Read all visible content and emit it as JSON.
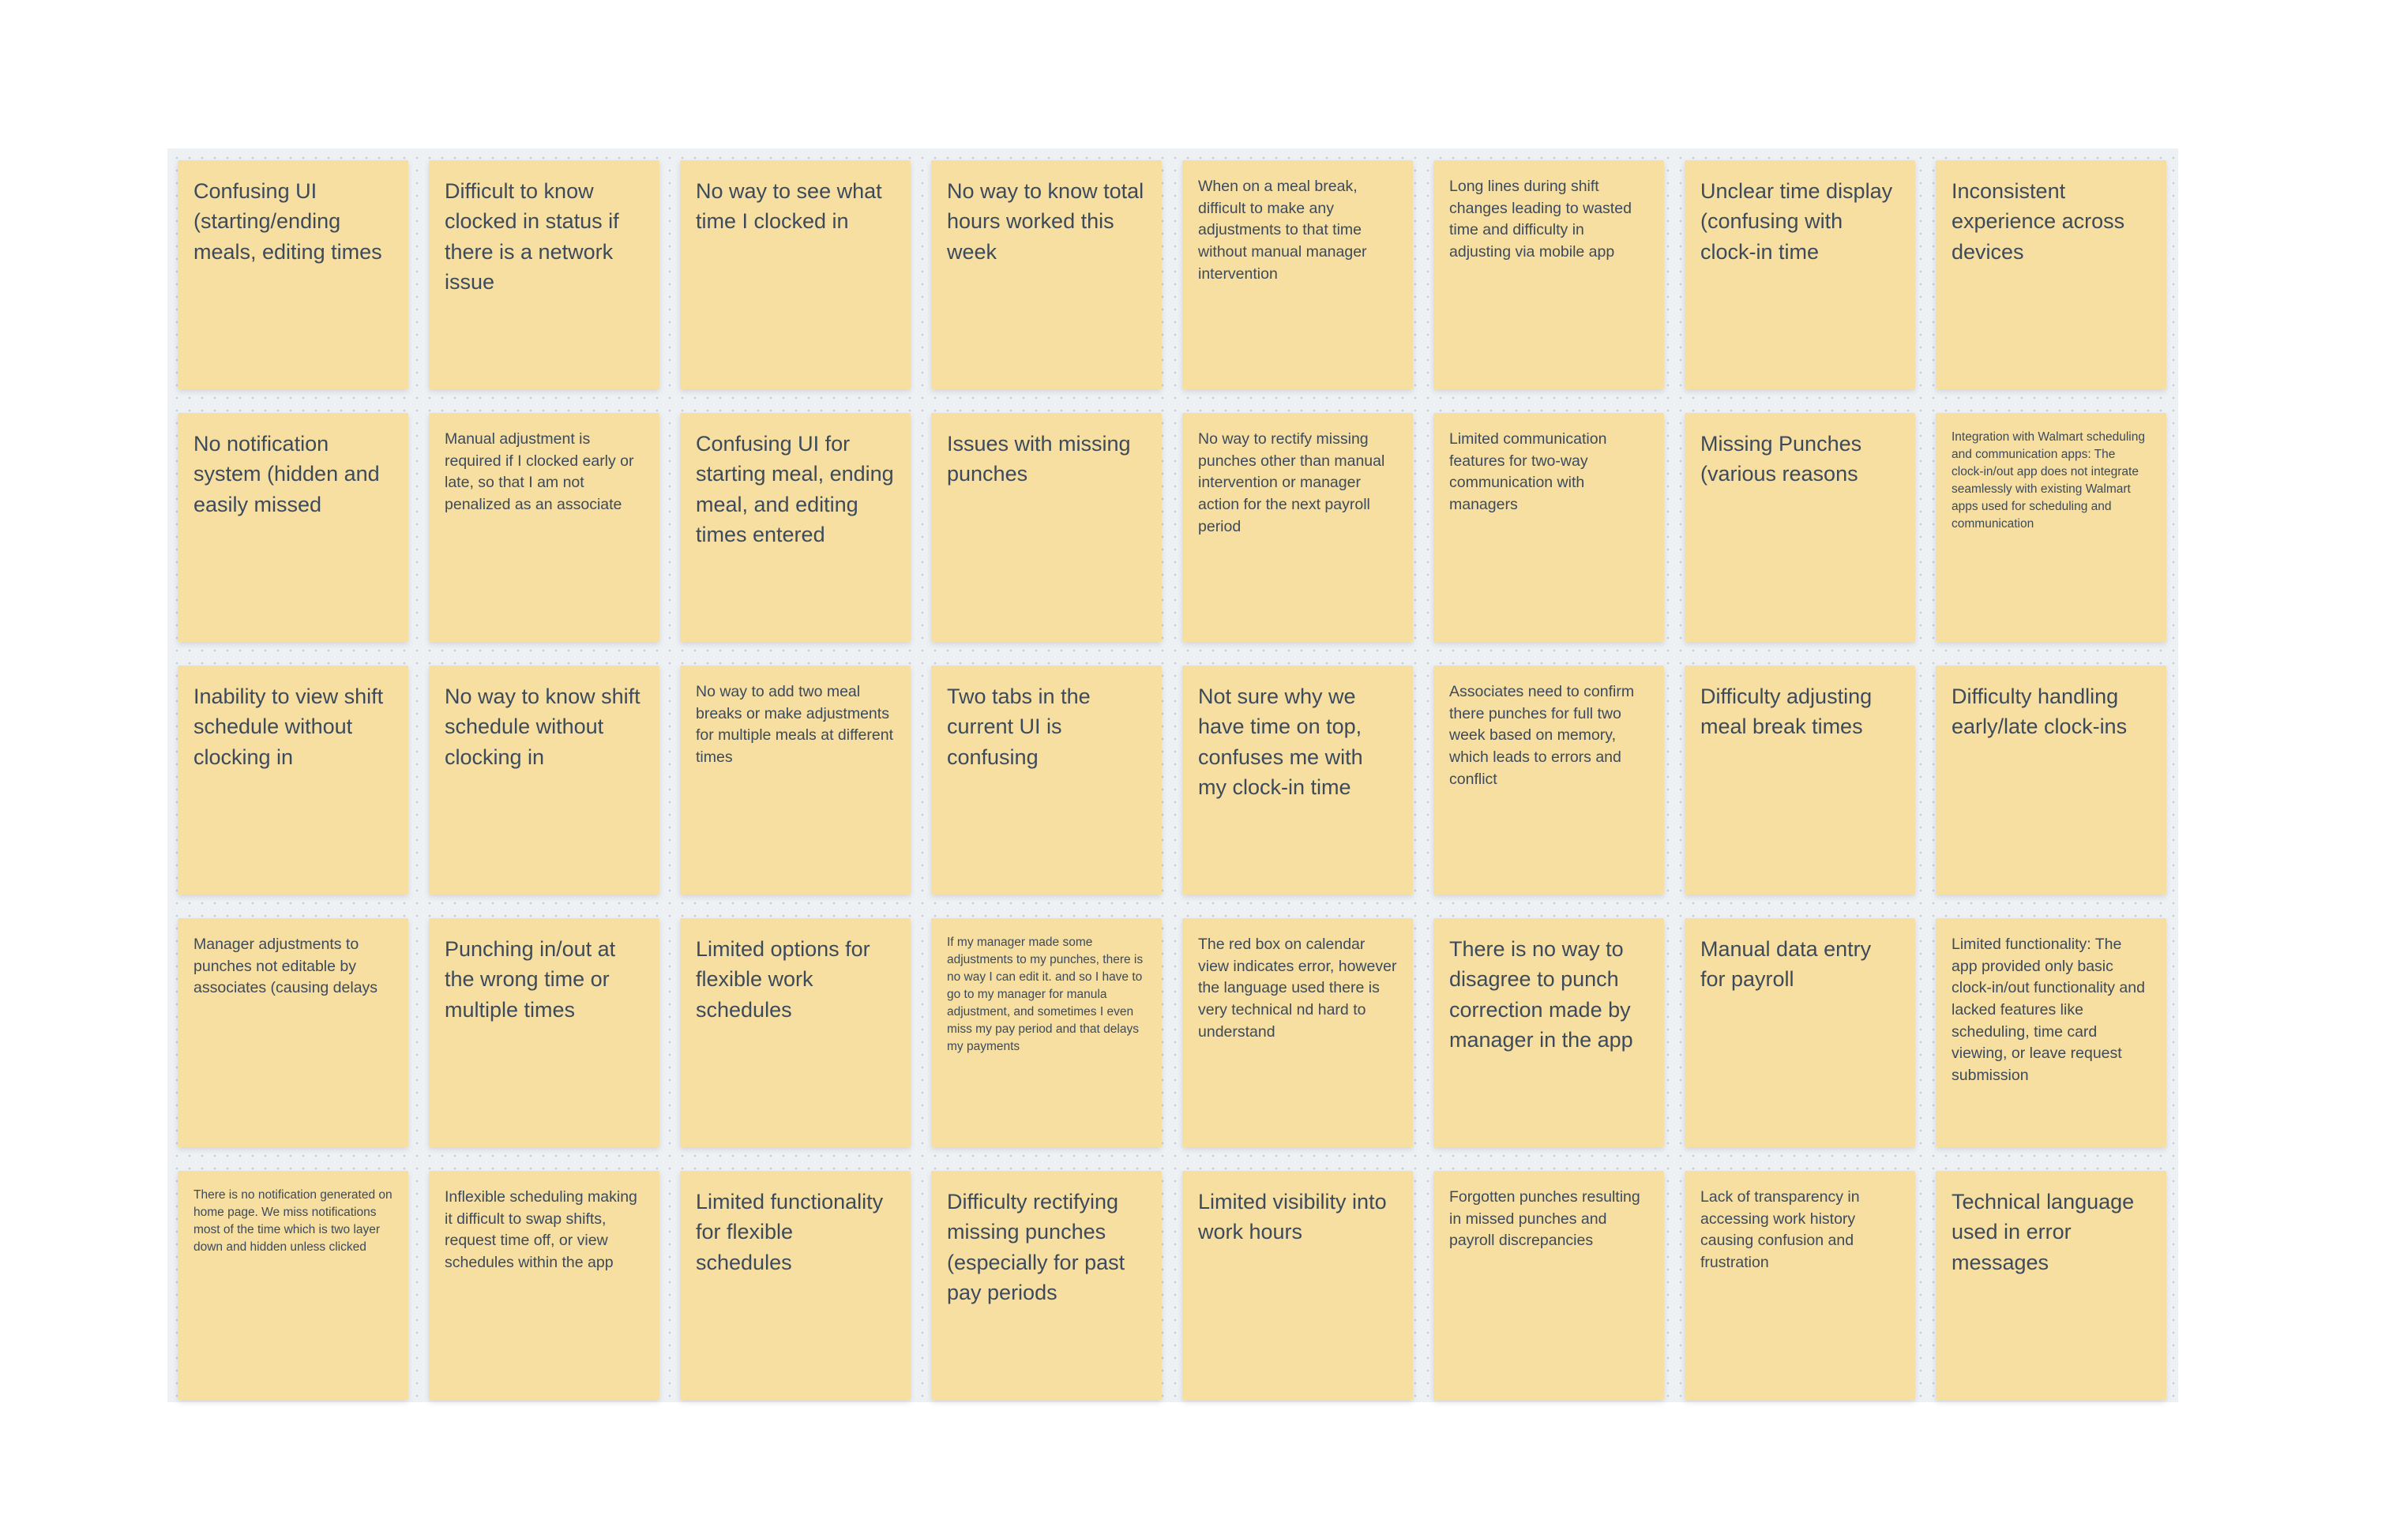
{
  "board": {
    "canvas_color": "#ffffff",
    "board_color": "#eef1f4",
    "note_color": "#f6dfa1",
    "text_color": "#3c4a5c",
    "rows": [
      {
        "notes": [
          {
            "text": "Confusing UI (starting/ending meals, editing times",
            "size": "lg"
          },
          {
            "text": "Difficult to know clocked in status if there is a network issue",
            "size": "lg"
          },
          {
            "text": "No way to see what time I clocked in",
            "size": "lg"
          },
          {
            "text": "No way to know total hours worked this week",
            "size": "lg"
          },
          {
            "text": "When on a meal break, difficult to make any adjustments to that time without manual manager intervention",
            "size": "md"
          },
          {
            "text": "Long lines during shift changes leading to wasted time and difficulty in adjusting via mobile app",
            "size": "md"
          },
          {
            "text": "Unclear time display (confusing with clock-in time",
            "size": "lg"
          },
          {
            "text": "Inconsistent experience across devices",
            "size": "lg"
          }
        ]
      },
      {
        "notes": [
          {
            "text": "No notification system (hidden and easily missed",
            "size": "lg"
          },
          {
            "text": "Manual adjustment is required if I clocked early or late, so that I am not penalized as an associate",
            "size": "md"
          },
          {
            "text": "Confusing UI for starting meal, ending meal, and editing times entered",
            "size": "lg"
          },
          {
            "text": "Issues with missing punches",
            "size": "lg"
          },
          {
            "text": "No way to rectify missing punches other than manual intervention or manager action for the next payroll period",
            "size": "md"
          },
          {
            "text": "Limited communication features for two-way communication with managers",
            "size": "md"
          },
          {
            "text": "Missing Punches (various reasons",
            "size": "lg"
          },
          {
            "text": "Integration with Walmart scheduling and communication apps: The clock-in/out app does not integrate seamlessly with existing Walmart apps used for scheduling and communication",
            "size": "sm"
          }
        ]
      },
      {
        "notes": [
          {
            "text": "Inability to view shift schedule without clocking in",
            "size": "lg"
          },
          {
            "text": "No way to know shift schedule without clocking in",
            "size": "lg"
          },
          {
            "text": "No way to add two meal breaks or make adjustments for multiple meals at different times",
            "size": "md"
          },
          {
            "text": "Two tabs in the current UI is confusing",
            "size": "lg"
          },
          {
            "text": "Not sure why we have time on top, confuses me with my clock-in time",
            "size": "lg"
          },
          {
            "text": "Associates need to confirm there punches for full two week based on memory, which leads to errors and conflict",
            "size": "md"
          },
          {
            "text": "Difficulty adjusting meal break times",
            "size": "lg"
          },
          {
            "text": "Difficulty handling early/late clock-ins",
            "size": "lg"
          }
        ]
      },
      {
        "notes": [
          {
            "text": "Manager adjustments to punches not editable by associates (causing delays",
            "size": "md"
          },
          {
            "text": "Punching in/out at the wrong time or multiple times",
            "size": "lg"
          },
          {
            "text": "Limited options for flexible work schedules",
            "size": "lg"
          },
          {
            "text": "If my manager made some adjustments to my punches, there is no way I can edit it. and so I have to go to my manager for manula adjustment, and sometimes I even miss my pay period and that delays my payments",
            "size": "sm"
          },
          {
            "text": "The red box on calendar view indicates error, however the language used there is very technical nd hard to understand",
            "size": "md"
          },
          {
            "text": "There is no way to disagree to punch correction made by manager in the app",
            "size": "lg"
          },
          {
            "text": "Manual data entry for payroll",
            "size": "lg"
          },
          {
            "text": "Limited functionality: The app provided only basic clock-in/out functionality and lacked features like scheduling, time card viewing, or leave request submission",
            "size": "md"
          }
        ]
      },
      {
        "notes": [
          {
            "text": "There is no notification generated on home page. We miss notifications most of the time which is two layer down and hidden unless clicked",
            "size": "sm"
          },
          {
            "text": "Inflexible scheduling making it difficult to swap shifts, request time off, or view schedules within the app",
            "size": "md"
          },
          {
            "text": "Limited functionality for flexible schedules",
            "size": "lg"
          },
          {
            "text": "Difficulty rectifying missing punches (especially for past pay periods",
            "size": "lg"
          },
          {
            "text": "Limited visibility into work hours",
            "size": "lg"
          },
          {
            "text": "Forgotten punches resulting in missed punches and payroll discrepancies",
            "size": "md"
          },
          {
            "text": "Lack of transparency in accessing work history causing confusion and frustration",
            "size": "md"
          },
          {
            "text": "Technical language used in error messages",
            "size": "lg"
          }
        ]
      }
    ]
  }
}
